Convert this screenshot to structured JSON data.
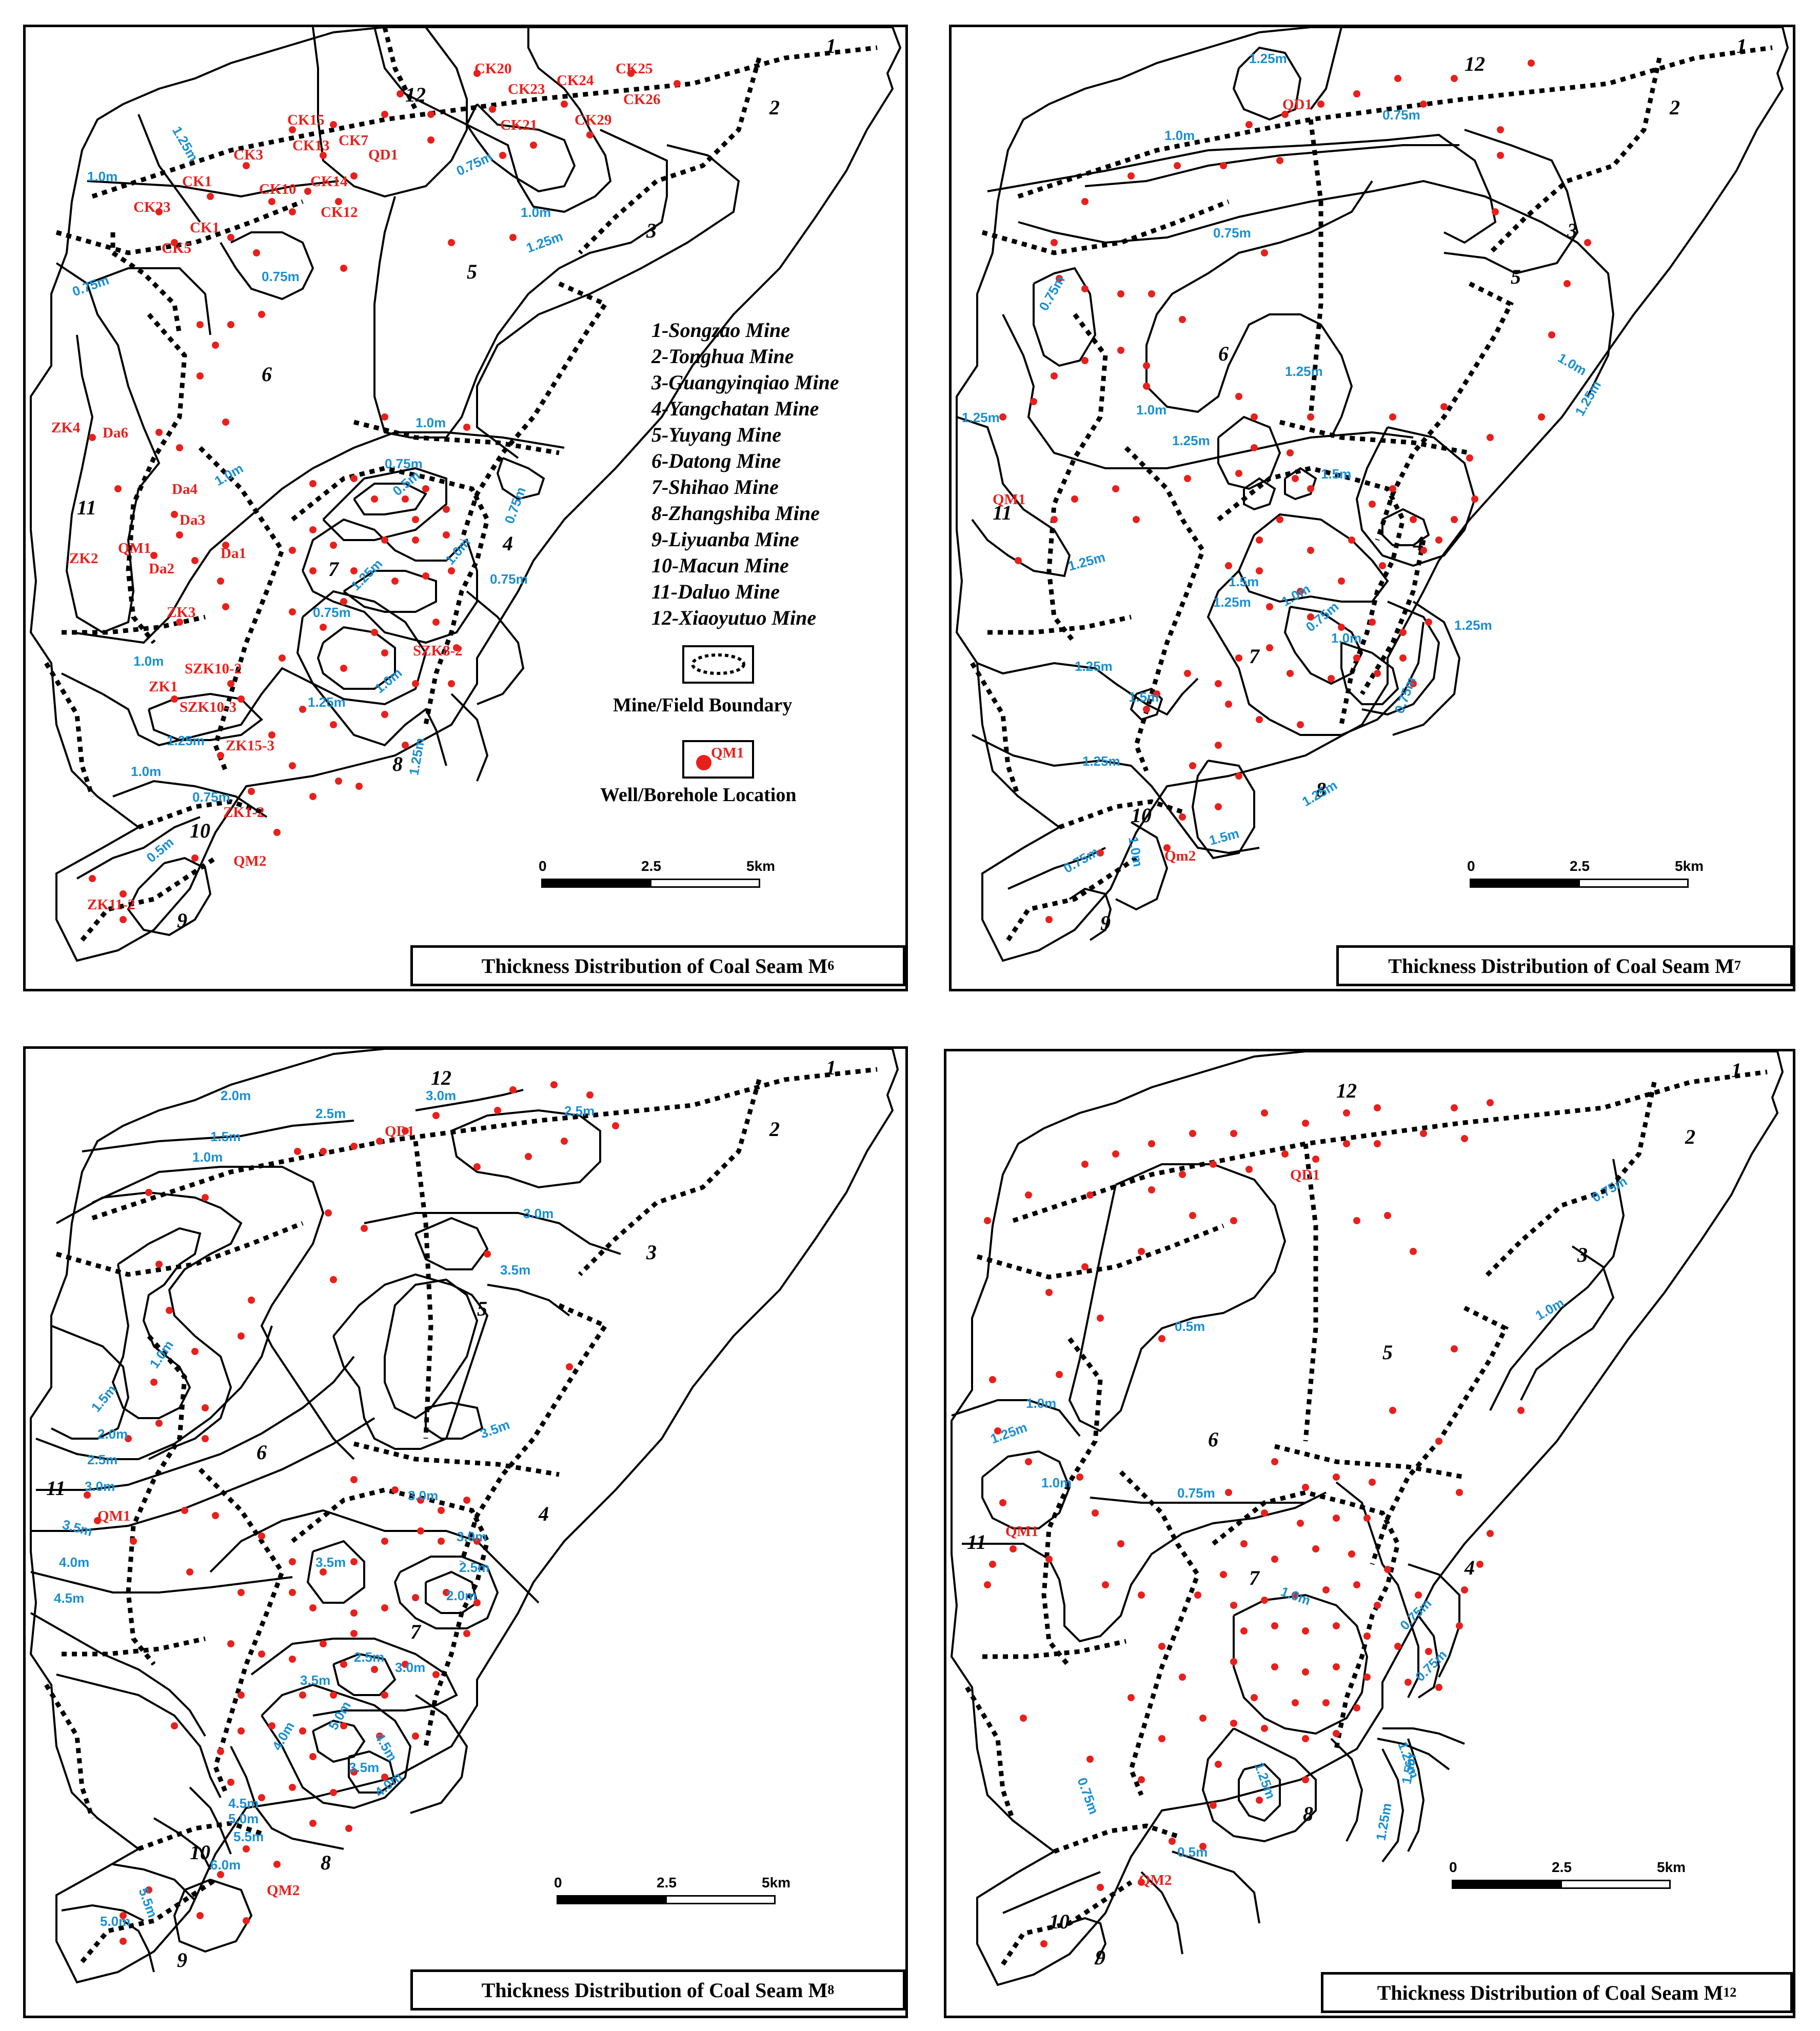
{
  "panels": [
    {
      "id": "m6",
      "title": "Thickness Distribution of Coal Seam M",
      "sub": "6"
    },
    {
      "id": "m7",
      "title": "Thickness Distribution of Coal Seam M",
      "sub": "7"
    },
    {
      "id": "m8",
      "title": "Thickness Distribution of Coal Seam M",
      "sub": "8"
    },
    {
      "id": "m12",
      "title": "Thickness Distribution of Coal Seam M",
      "sub": "12"
    }
  ],
  "legend": {
    "mines": [
      "1-Songzao Mine",
      "2-Tonghua Mine",
      "3-Guangyinqiao Mine",
      "4-Yangchatan Mine",
      "5-Yuyang Mine",
      "6-Datong Mine",
      "7-Shihao Mine",
      "8-Zhangshiba Mine",
      "9-Liyuanba Mine",
      "10-Macun Mine",
      "11-Daluo Mine",
      "12-Xiaoyutuo Mine"
    ],
    "boundary_label": "Mine/Field Boundary",
    "well_label": "Well/Borehole Location",
    "well_example": "QM1"
  },
  "scale": {
    "labels": [
      "0",
      "2.5",
      "5km"
    ]
  },
  "mine_numbers": [
    "1",
    "2",
    "3",
    "4",
    "5",
    "6",
    "7",
    "8",
    "9",
    "10",
    "11",
    "12"
  ],
  "m6": {
    "wells": [
      "CK20",
      "CK25",
      "CK23",
      "CK24",
      "CK26",
      "CK21",
      "CK29",
      "CK15",
      "CK13",
      "CK7",
      "CK3",
      "QD1",
      "CK1",
      "CK14",
      "CK10",
      "CK12",
      "CK23",
      "CK1",
      "CK5",
      "ZK4",
      "Da6",
      "Da4",
      "Da3",
      "QM1",
      "Da1",
      "Da2",
      "ZK2",
      "ZK3",
      "SZK10-2",
      "ZK1",
      "SZK10-3",
      "SZK8-2",
      "ZK15-3",
      "ZK1-2",
      "QM2",
      "ZK11-2"
    ],
    "isopachs": [
      "1.25m",
      "1.0m",
      "0.75m",
      "1.0m",
      "1.25m",
      "0.75m",
      "0.75m",
      "1.0m",
      "1.0m",
      "0.75m",
      "0.5m",
      "1.25m",
      "1.0m",
      "0.75m",
      "0.75m",
      "0.75m",
      "1.0m",
      "1.25m",
      "1.0m",
      "1.25m",
      "1.0m",
      "0.75m",
      "0.5m",
      "1.25m"
    ]
  },
  "m7": {
    "wells": [
      "QD1",
      "QM1",
      "Qm2"
    ],
    "isopachs": [
      "1.25m",
      "1.0m",
      "0.75m",
      "0.75m",
      "0.75m",
      "1.0m",
      "1.25m",
      "1.25m",
      "1.0m",
      "1.25m",
      "1.25m",
      "1.5m",
      "1.25m",
      "1.5m",
      "1.25m",
      "1.0m",
      "0.75m",
      "1.25m",
      "1.5m",
      "1.0m",
      "0.75m",
      "1.25m",
      "1.25m",
      "0.75m",
      "1.0m",
      "1.5m",
      "1.25m"
    ]
  },
  "m8": {
    "wells": [
      "QD1",
      "QM1",
      "QM2"
    ],
    "isopachs": [
      "2.0m",
      "2.5m",
      "3.0m",
      "2.5m",
      "1.5m",
      "1.0m",
      "3.0m",
      "3.5m",
      "1.0m",
      "1.5m",
      "2.0m",
      "2.5m",
      "3.0m",
      "3.5m",
      "4.0m",
      "4.5m",
      "3.0m",
      "3.5m",
      "3.0m",
      "3.5m",
      "2.5m",
      "2.0m",
      "2.5m",
      "3.0m",
      "3.5m",
      "4.0m",
      "5.0m",
      "4.5m",
      "3.5m",
      "4.0m",
      "4.5m",
      "5.0m",
      "5.5m",
      "6.0m",
      "5.5m",
      "5.0m"
    ]
  },
  "m12": {
    "wells": [
      "QD1",
      "QM1",
      "QM2"
    ],
    "isopachs": [
      "0.75m",
      "1.0m",
      "0.5m",
      "1.0m",
      "1.25m",
      "0.75m",
      "1.0m",
      "1.0m",
      "0.75m",
      "0.75m",
      "1.25m",
      "1.25m",
      "1.5m",
      "1.25m",
      "0.75m",
      "0.5m"
    ]
  }
}
